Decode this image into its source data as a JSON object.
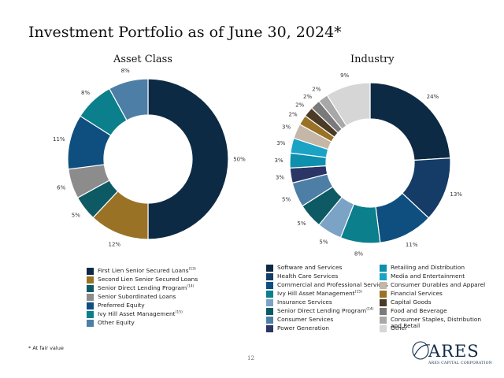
{
  "page": {
    "title": "Investment Portfolio as of June 30, 2024*",
    "footnote": "* At fair value",
    "page_number": "12"
  },
  "logo": {
    "name": "ARES",
    "subtitle": "ARES CAPITAL CORPORATION"
  },
  "chart_data": [
    {
      "type": "pie",
      "title": "Asset Class",
      "donut": true,
      "slices": [
        {
          "label": "First Lien Senior Secured Loans",
          "superscript": "(13)",
          "value": 50,
          "display": "50%",
          "color": "#0d2a44"
        },
        {
          "label": "Second Lien Senior Secured Loans",
          "superscript": "",
          "value": 12,
          "display": "12%",
          "color": "#9a7226"
        },
        {
          "label": "Senior Direct Lending Program",
          "superscript": "(14)",
          "value": 5,
          "display": "5%",
          "color": "#0e5a64"
        },
        {
          "label": "Senior Subordinated Loans",
          "superscript": "",
          "value": 6,
          "display": "6%",
          "color": "#8c8c8c"
        },
        {
          "label": "Preferred Equity",
          "superscript": "",
          "value": 11,
          "display": "11%",
          "color": "#0e4f7f"
        },
        {
          "label": "Ivy Hill Asset Management",
          "superscript": "(15)",
          "value": 8,
          "display": "8%",
          "color": "#0b7f8c"
        },
        {
          "label": "Other Equity",
          "superscript": "",
          "value": 8,
          "display": "8%",
          "color": "#4d7fa6"
        }
      ]
    },
    {
      "type": "pie",
      "title": "Industry",
      "donut": true,
      "slices": [
        {
          "label": "Software and Services",
          "superscript": "",
          "value": 24,
          "display": "24%",
          "color": "#0d2a44"
        },
        {
          "label": "Health Care Services",
          "superscript": "",
          "value": 13,
          "display": "13%",
          "color": "#153c66"
        },
        {
          "label": "Commercial and Professional Services",
          "superscript": "",
          "value": 11,
          "display": "11%",
          "color": "#0e4f7f"
        },
        {
          "label": "Ivy Hill Asset Management",
          "superscript": "(15)",
          "value": 8,
          "display": "8%",
          "color": "#0b7f8c"
        },
        {
          "label": "Insurance Services",
          "superscript": "",
          "value": 5,
          "display": "5%",
          "color": "#7aa3c6"
        },
        {
          "label": "Senior Direct Lending Program",
          "superscript": "(14)",
          "value": 5,
          "display": "5%",
          "color": "#0e5a64"
        },
        {
          "label": "Consumer Services",
          "superscript": "",
          "value": 5,
          "display": "5%",
          "color": "#4d7fa6"
        },
        {
          "label": "Power Generation",
          "superscript": "",
          "value": 3,
          "display": "3%",
          "color": "#2b3566"
        },
        {
          "label": "Retailing and Distribution",
          "superscript": "",
          "value": 3,
          "display": "3%",
          "color": "#0e8fae"
        },
        {
          "label": "Media and Entertainment",
          "superscript": "",
          "value": 3,
          "display": "3%",
          "color": "#1aa3c4"
        },
        {
          "label": "Consumer Durables and Apparel",
          "superscript": "",
          "value": 3,
          "display": "3%",
          "color": "#c4b7a8"
        },
        {
          "label": "Financial Services",
          "superscript": "",
          "value": 2,
          "display": "2%",
          "color": "#9a7226"
        },
        {
          "label": "Capital Goods",
          "superscript": "",
          "value": 2,
          "display": "2%",
          "color": "#4a3a26"
        },
        {
          "label": "Food and Beverage",
          "superscript": "",
          "value": 2,
          "display": "2%",
          "color": "#7a7a7a"
        },
        {
          "label": "Consumer Staples, Distribution and Retail",
          "superscript": "",
          "value": 2,
          "display": "2%",
          "color": "#a8a8a8"
        },
        {
          "label": "Other",
          "superscript": "",
          "value": 9,
          "display": "9%",
          "color": "#d6d6d6"
        }
      ]
    }
  ]
}
